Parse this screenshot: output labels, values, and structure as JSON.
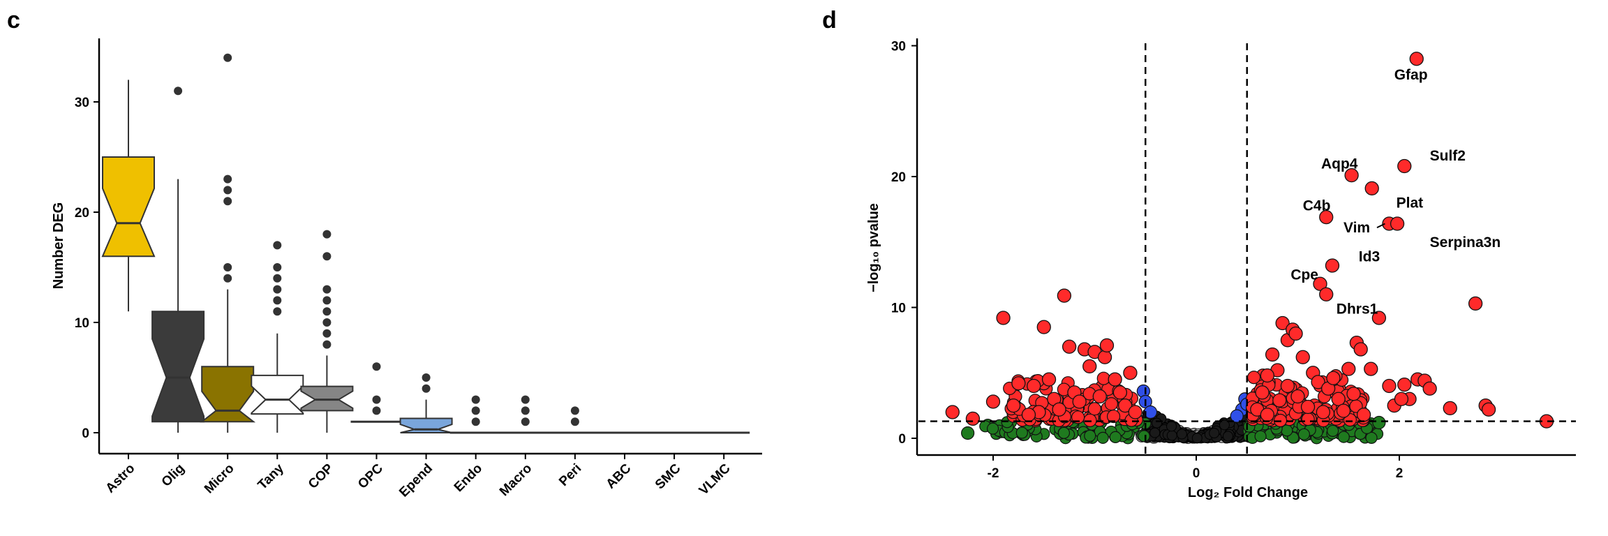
{
  "chart_data": [
    {
      "type": "box",
      "panel": "c",
      "xlabel": "",
      "ylabel": "Number DEG",
      "ylim": [
        -1,
        36
      ],
      "yticks": [
        0,
        10,
        20,
        30
      ],
      "notched": true,
      "categories": [
        "Astro",
        "Olig",
        "Micro",
        "Tany",
        "COP",
        "OPC",
        "Epend",
        "Endo",
        "Macro",
        "Peri",
        "ABC",
        "SMC",
        "VLMC"
      ],
      "boxes": [
        {
          "category": "Astro",
          "color": "#efc000",
          "min": 11,
          "q1": 16,
          "median": 19,
          "q3": 25,
          "max": 32,
          "outliers": []
        },
        {
          "category": "Olig",
          "color": "#3b3b3b",
          "min": 0,
          "q1": 1,
          "median": 5,
          "q3": 11,
          "max": 23,
          "outliers": [
            31
          ]
        },
        {
          "category": "Micro",
          "color": "#8a7300",
          "min": 0,
          "q1": 1,
          "median": 2,
          "q3": 6,
          "max": 13,
          "outliers": [
            14,
            15,
            21,
            22,
            23,
            34
          ]
        },
        {
          "category": "Tany",
          "color": "#ffffff",
          "min": 0,
          "q1": 1.7,
          "median": 3,
          "q3": 5.2,
          "max": 9,
          "outliers": [
            11,
            12,
            13,
            14,
            15,
            17
          ]
        },
        {
          "category": "COP",
          "color": "#868686",
          "min": 0,
          "q1": 2,
          "median": 3,
          "q3": 4.2,
          "max": 7,
          "outliers": [
            8,
            9,
            10,
            11,
            12,
            13,
            16,
            18
          ]
        },
        {
          "category": "OPC",
          "color": "#cdcdcd",
          "min": 1,
          "q1": 1,
          "median": 1,
          "q3": 1,
          "max": 1,
          "outliers": [
            2,
            3,
            6
          ]
        },
        {
          "category": "Epend",
          "color": "#7aa6dc",
          "min": 0,
          "q1": 0,
          "median": 0.3,
          "q3": 1.3,
          "max": 3,
          "outliers": [
            4,
            5
          ]
        },
        {
          "category": "Endo",
          "color": "#cccccc",
          "min": 0,
          "q1": 0,
          "median": 0,
          "q3": 0,
          "max": 0,
          "outliers": [
            1,
            2,
            3
          ]
        },
        {
          "category": "Macro",
          "color": "#cccccc",
          "min": 0,
          "q1": 0,
          "median": 0,
          "q3": 0,
          "max": 0,
          "outliers": [
            1,
            2,
            3
          ]
        },
        {
          "category": "Peri",
          "color": "#cccccc",
          "min": 0,
          "q1": 0,
          "median": 0,
          "q3": 0,
          "max": 0,
          "outliers": [
            1,
            2
          ]
        },
        {
          "category": "ABC",
          "color": "#cccccc",
          "min": 0,
          "q1": 0,
          "median": 0,
          "q3": 0,
          "max": 0,
          "outliers": []
        },
        {
          "category": "SMC",
          "color": "#cccccc",
          "min": 0,
          "q1": 0,
          "median": 0,
          "q3": 0,
          "max": 0,
          "outliers": []
        },
        {
          "category": "VLMC",
          "color": "#cccccc",
          "min": 0,
          "q1": 0,
          "median": 0,
          "q3": 0,
          "max": 0,
          "outliers": []
        }
      ]
    },
    {
      "type": "scatter",
      "panel": "d",
      "xlabel": "Log₂ Fold Change",
      "ylabel": "−log₁₀ pvalue",
      "xlim": [
        -2.7,
        3.75
      ],
      "ylim": [
        -1.5,
        30.5
      ],
      "xticks": [
        -2,
        0,
        2
      ],
      "yticks": [
        0,
        10,
        20,
        30
      ],
      "vlines": [
        -0.5,
        0.5
      ],
      "hline": 1.3,
      "colors": {
        "significant": "#ff2a2a",
        "fold_change_only": "#1f7a1f",
        "pvalue_only": "#3050e8",
        "not_significant": "#bbbbbb"
      },
      "labeled_points": [
        {
          "gene": "Gfap",
          "x": 2.17,
          "y": 29.0,
          "label_x": 1.95,
          "label_y": 27.8
        },
        {
          "gene": "Sulf2",
          "x": 2.05,
          "y": 20.8,
          "label_x": 2.3,
          "label_y": 21.6
        },
        {
          "gene": "Aqp4",
          "x": 1.53,
          "y": 20.1,
          "label_x": 1.23,
          "label_y": 21.0
        },
        {
          "gene": "Plat",
          "x": 1.73,
          "y": 19.1,
          "label_x": 1.97,
          "label_y": 18.0
        },
        {
          "gene": "C4b",
          "x": 1.28,
          "y": 16.9,
          "label_x": 1.05,
          "label_y": 17.8
        },
        {
          "gene": "Vim",
          "x": 1.9,
          "y": 16.4,
          "label_x": 1.45,
          "label_y": 16.1,
          "line": true
        },
        {
          "gene": "Serpina3n",
          "x": 1.98,
          "y": 16.4,
          "label_x": 2.3,
          "label_y": 15.0
        },
        {
          "gene": "Id3",
          "x": 1.34,
          "y": 13.2,
          "label_x": 1.6,
          "label_y": 13.9
        },
        {
          "gene": "Cpe",
          "x": 1.22,
          "y": 11.8,
          "label_x": 0.93,
          "label_y": 12.5
        },
        {
          "gene": "Dhrs1",
          "x": 1.28,
          "y": 11.0,
          "label_x": 1.38,
          "label_y": 9.9
        }
      ],
      "other_significant_points": [
        [
          -2.4,
          2.0
        ],
        [
          -2.2,
          1.5
        ],
        [
          -2.0,
          2.8
        ],
        [
          -1.9,
          9.2
        ],
        [
          -1.8,
          2.5
        ],
        [
          -1.75,
          4.2
        ],
        [
          -1.6,
          4.0
        ],
        [
          -1.5,
          8.5
        ],
        [
          -1.45,
          4.5
        ],
        [
          -1.3,
          10.9
        ],
        [
          -1.25,
          7.0
        ],
        [
          -1.1,
          6.8
        ],
        [
          -1.05,
          5.5
        ],
        [
          -1.0,
          6.6
        ],
        [
          -0.9,
          6.2
        ],
        [
          -0.88,
          7.1
        ],
        [
          -1.2,
          3.5
        ],
        [
          -1.4,
          3.0
        ],
        [
          -1.35,
          2.2
        ],
        [
          -1.15,
          2.8
        ],
        [
          -0.95,
          3.2
        ],
        [
          -0.8,
          4.5
        ],
        [
          -0.75,
          3.5
        ],
        [
          -0.65,
          5.0
        ],
        [
          -0.7,
          2.5
        ],
        [
          -1.55,
          2.0
        ],
        [
          -0.6,
          2.0
        ],
        [
          -1.65,
          1.8
        ],
        [
          0.85,
          8.8
        ],
        [
          0.9,
          7.5
        ],
        [
          0.95,
          8.3
        ],
        [
          0.98,
          8.0
        ],
        [
          1.05,
          6.2
        ],
        [
          0.8,
          5.2
        ],
        [
          0.75,
          6.4
        ],
        [
          0.7,
          4.8
        ],
        [
          0.65,
          3.5
        ],
        [
          0.6,
          2.2
        ],
        [
          0.9,
          4.0
        ],
        [
          1.0,
          3.2
        ],
        [
          1.15,
          5.0
        ],
        [
          1.2,
          4.3
        ],
        [
          1.3,
          3.8
        ],
        [
          1.4,
          3.0
        ],
        [
          1.5,
          5.3
        ],
        [
          1.58,
          7.3
        ],
        [
          1.62,
          6.8
        ],
        [
          1.72,
          5.3
        ],
        [
          1.8,
          9.2
        ],
        [
          1.9,
          4.0
        ],
        [
          1.95,
          2.5
        ],
        [
          2.05,
          4.1
        ],
        [
          2.1,
          3.0
        ],
        [
          2.18,
          4.5
        ],
        [
          2.25,
          4.4
        ],
        [
          2.3,
          3.8
        ],
        [
          2.5,
          2.3
        ],
        [
          2.75,
          10.3
        ],
        [
          2.85,
          2.5
        ],
        [
          2.88,
          2.2
        ],
        [
          3.45,
          1.3
        ],
        [
          1.1,
          2.4
        ],
        [
          1.25,
          2.0
        ],
        [
          1.45,
          2.1
        ],
        [
          1.65,
          1.8
        ],
        [
          1.35,
          4.6
        ],
        [
          1.55,
          3.4
        ],
        [
          0.7,
          1.8
        ],
        [
          2.02,
          3.0
        ],
        [
          0.82,
          2.9
        ]
      ]
    }
  ]
}
